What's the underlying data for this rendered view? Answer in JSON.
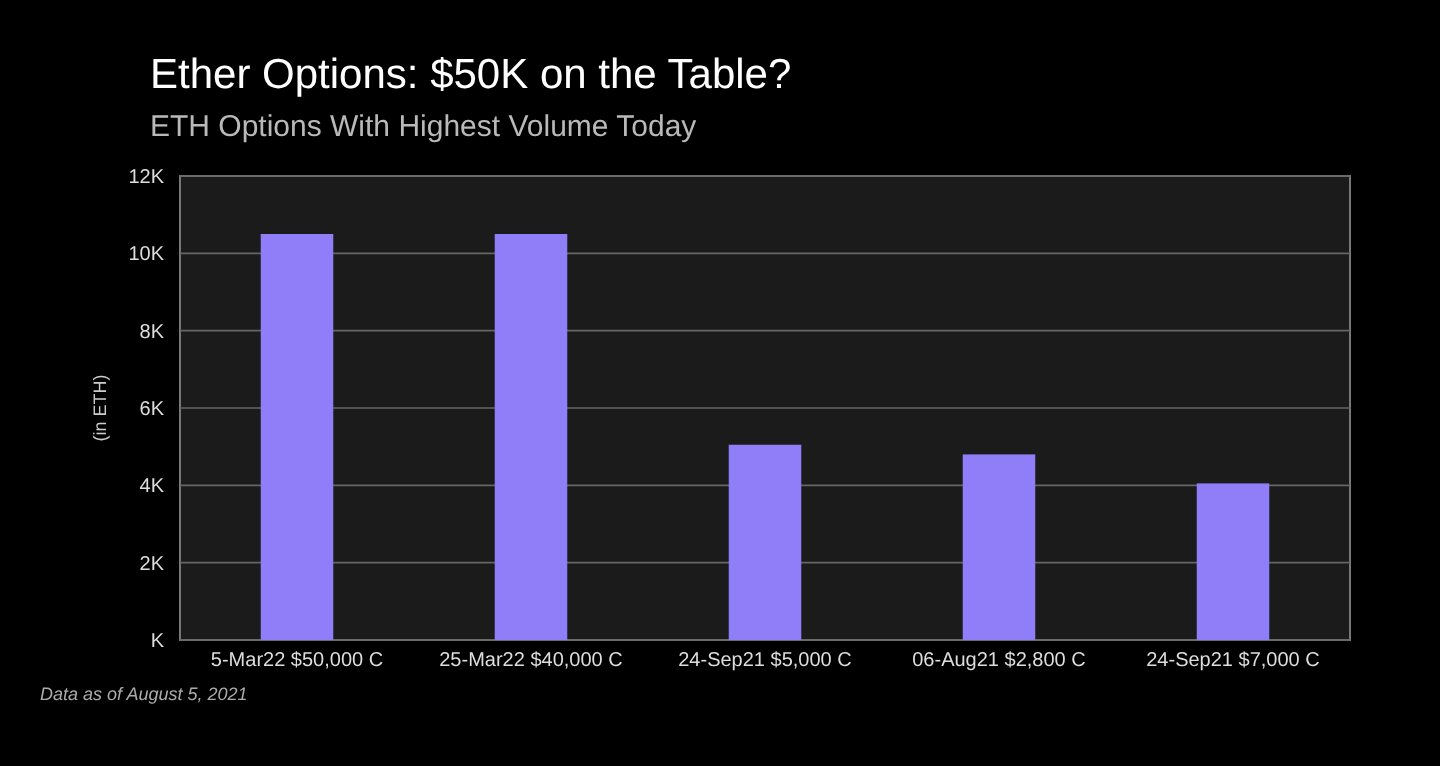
{
  "chart_data": {
    "type": "bar",
    "title": "Ether Options: $50K on the Table?",
    "subtitle": "ETH Options With Highest Volume Today",
    "ylabel": "(in ETH)",
    "categories": [
      "5-Mar22 $50,000 C",
      "25-Mar22 $40,000 C",
      "24-Sep21 $5,000 C",
      "06-Aug21 $2,800 C",
      "24-Sep21 $7,000 C"
    ],
    "values": [
      10500,
      10500,
      5050,
      4800,
      4050
    ],
    "color": "#8f7ef7",
    "ylim": [
      0,
      12000
    ],
    "yticks": [
      {
        "value": 0,
        "label": "K"
      },
      {
        "value": 2000,
        "label": "2K"
      },
      {
        "value": 4000,
        "label": "4K"
      },
      {
        "value": 6000,
        "label": "6K"
      },
      {
        "value": 8000,
        "label": "8K"
      },
      {
        "value": 10000,
        "label": "10K"
      },
      {
        "value": 12000,
        "label": "12K"
      }
    ],
    "grid": "y",
    "annotations": [
      "Data as of August 5, 2021"
    ]
  }
}
